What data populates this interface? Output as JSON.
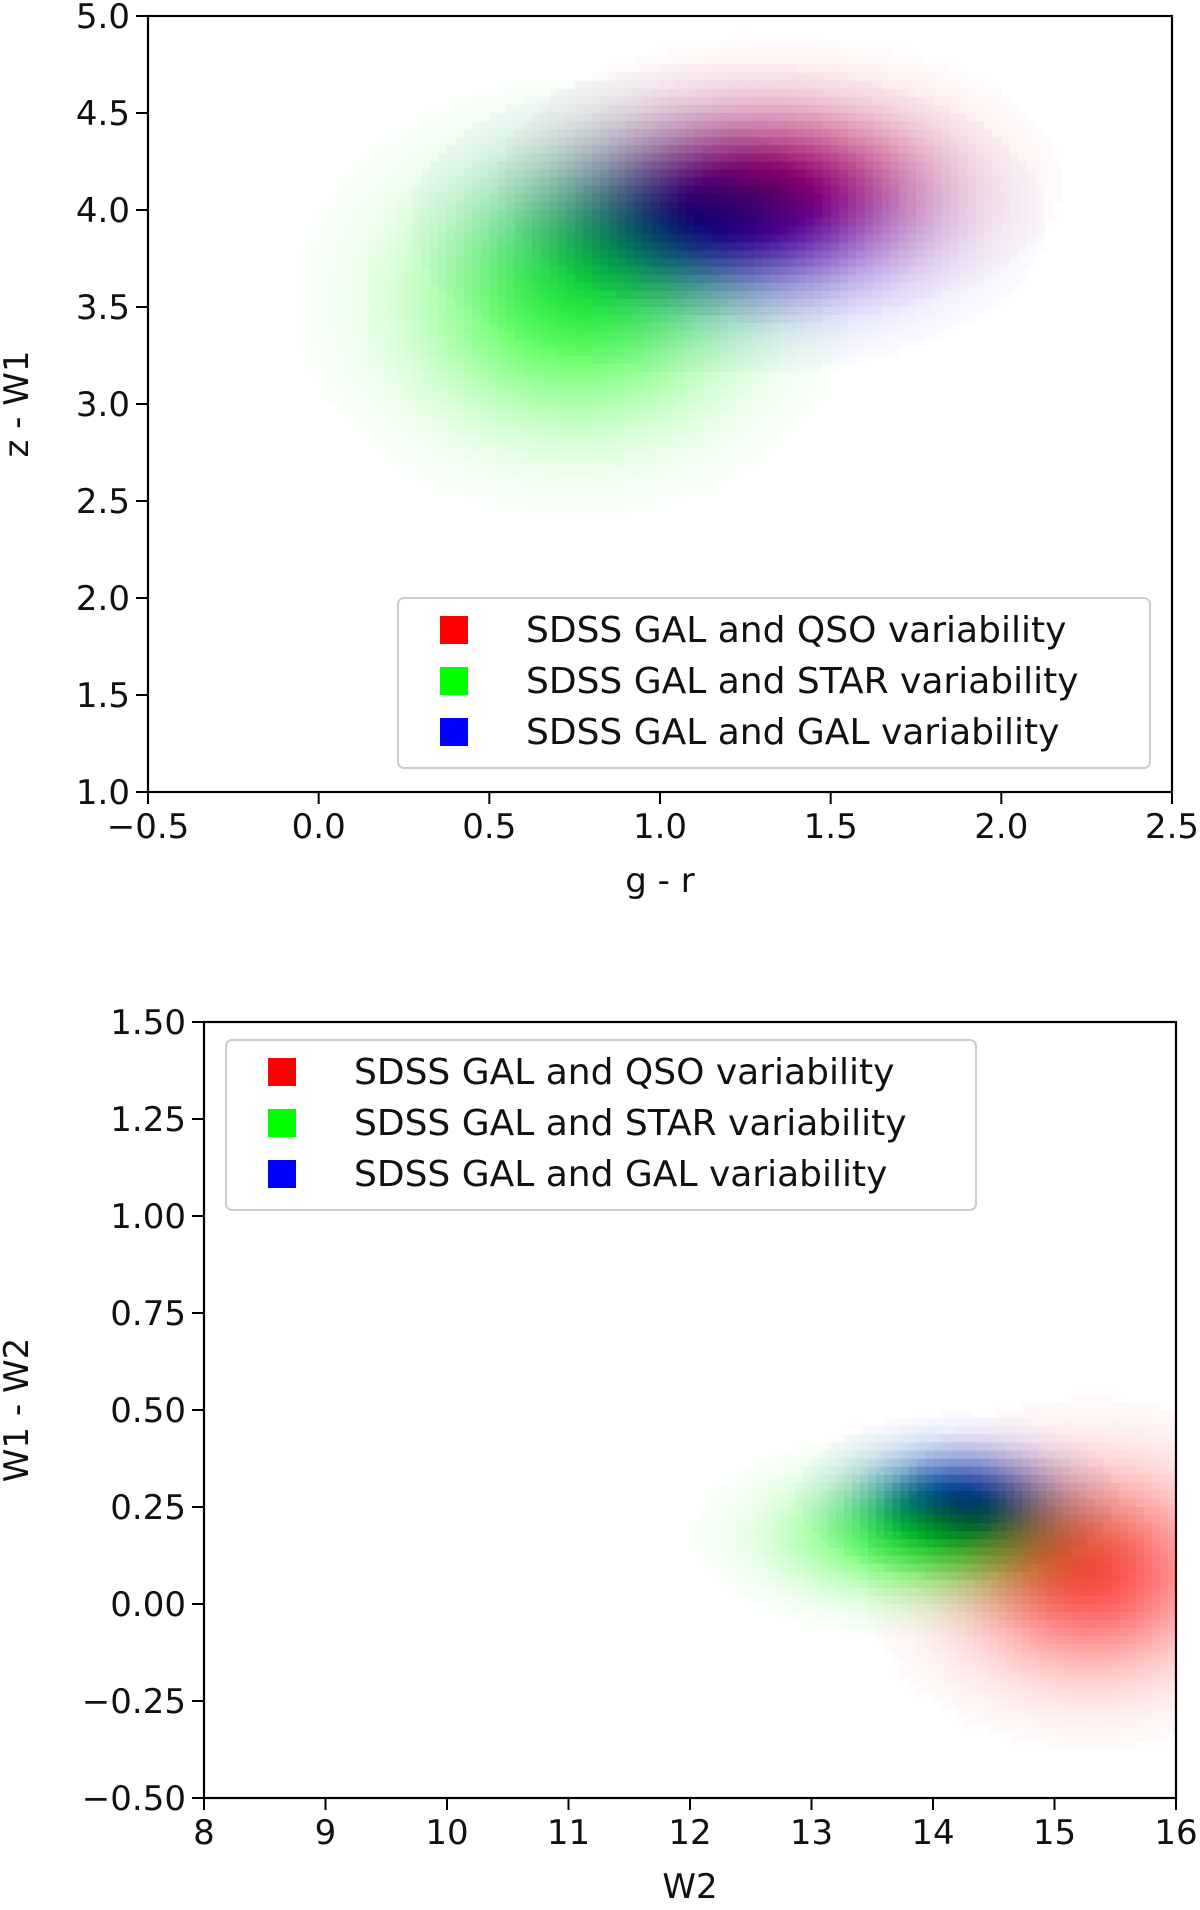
{
  "chart_data": [
    {
      "type": "heatmap",
      "title": "",
      "xlabel": "g - r",
      "ylabel": "z - W1",
      "xlim": [
        -0.5,
        2.5
      ],
      "ylim": [
        1.0,
        5.0
      ],
      "xticks": [
        -0.5,
        0.0,
        0.5,
        1.0,
        1.5,
        2.0,
        2.5
      ],
      "xtick_labels": [
        "−0.5",
        "0.0",
        "0.5",
        "1.0",
        "1.5",
        "2.0",
        "2.5"
      ],
      "yticks": [
        1.0,
        1.5,
        2.0,
        2.5,
        3.0,
        3.5,
        4.0,
        4.5,
        5.0
      ],
      "ytick_labels": [
        "1.0",
        "1.5",
        "2.0",
        "2.5",
        "3.0",
        "3.5",
        "4.0",
        "4.5",
        "5.0"
      ],
      "grid": false,
      "legend_position": "lower-right",
      "series": [
        {
          "name": "SDSS GAL and QSO variability",
          "color": "#ff0000",
          "peak": [
            1.35,
            4.15
          ],
          "spread": [
            0.32,
            0.28
          ],
          "strength": 0.55
        },
        {
          "name": "SDSS GAL and STAR variability",
          "color": "#00ff00",
          "peak": [
            0.75,
            3.55
          ],
          "spread": [
            0.3,
            0.42
          ],
          "strength": 0.75
        },
        {
          "name": "SDSS GAL and GAL variability",
          "color": "#0000ff",
          "peak": [
            1.2,
            3.95
          ],
          "spread": [
            0.35,
            0.3
          ],
          "strength": 0.7
        }
      ]
    },
    {
      "type": "heatmap",
      "title": "",
      "xlabel": "W2",
      "ylabel": "W1 - W2",
      "xlim": [
        8,
        16
      ],
      "ylim": [
        -0.5,
        1.5
      ],
      "xticks": [
        8,
        9,
        10,
        11,
        12,
        13,
        14,
        15,
        16
      ],
      "xtick_labels": [
        "8",
        "9",
        "10",
        "11",
        "12",
        "13",
        "14",
        "15",
        "16"
      ],
      "yticks": [
        -0.5,
        -0.25,
        0.0,
        0.25,
        0.5,
        0.75,
        1.0,
        1.25,
        1.5
      ],
      "ytick_labels": [
        "−0.50",
        "−0.25",
        "0.00",
        "0.25",
        "0.50",
        "0.75",
        "1.00",
        "1.25",
        "1.50"
      ],
      "grid": false,
      "legend_position": "upper-left",
      "series": [
        {
          "name": "SDSS GAL and QSO variability",
          "color": "#ff0000",
          "peak": [
            15.3,
            0.08
          ],
          "spread": [
            0.7,
            0.17
          ],
          "strength": 0.7
        },
        {
          "name": "SDSS GAL and STAR variability",
          "color": "#00ff00",
          "peak": [
            13.9,
            0.18
          ],
          "spread": [
            0.7,
            0.1
          ],
          "strength": 0.75
        },
        {
          "name": "SDSS GAL and GAL variability",
          "color": "#0000ff",
          "peak": [
            14.2,
            0.28
          ],
          "spread": [
            0.5,
            0.08
          ],
          "strength": 0.65
        }
      ]
    }
  ]
}
